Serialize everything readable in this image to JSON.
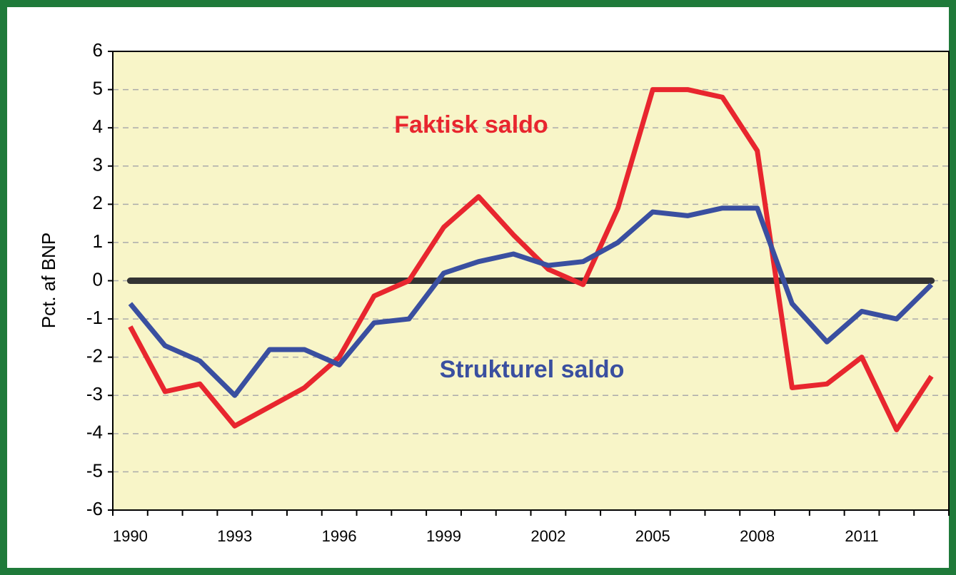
{
  "chart_data": {
    "type": "line",
    "y_label": "Pct. af BNP",
    "annotations": [
      "Faktisk saldo",
      "Strukturel saldo"
    ],
    "categories": [
      "1990",
      null,
      null,
      "1993",
      null,
      null,
      "1996",
      null,
      null,
      "1999",
      null,
      null,
      "2002",
      null,
      null,
      "2005",
      null,
      null,
      "2008",
      null,
      null,
      "2011",
      null,
      null
    ],
    "series": [
      {
        "name": "Faktisk saldo",
        "color": "#e8262e",
        "values": [
          -1.2,
          -2.9,
          -2.7,
          -3.8,
          -3.3,
          -2.8,
          -2.0,
          -0.4,
          0.0,
          1.4,
          2.2,
          1.2,
          0.3,
          -0.1,
          1.9,
          5.0,
          5.0,
          4.8,
          3.4,
          -2.8,
          -2.7,
          -2.0,
          -3.9,
          -2.5
        ]
      },
      {
        "name": "Strukturel saldo",
        "color": "#3a4fa0",
        "values": [
          -0.6,
          -1.7,
          -2.1,
          -3.0,
          -1.8,
          -1.8,
          -2.2,
          -1.1,
          -1.0,
          0.2,
          0.5,
          0.7,
          0.4,
          0.5,
          1.0,
          1.8,
          1.7,
          1.9,
          1.9,
          -0.6,
          -1.6,
          -0.8,
          -1.0,
          -0.1
        ]
      }
    ],
    "ylim": [
      -6,
      6
    ],
    "yticks": [
      -6,
      -5,
      -4,
      -3,
      -2,
      -1,
      0,
      1,
      2,
      3,
      4,
      5,
      6
    ],
    "grid": true
  }
}
